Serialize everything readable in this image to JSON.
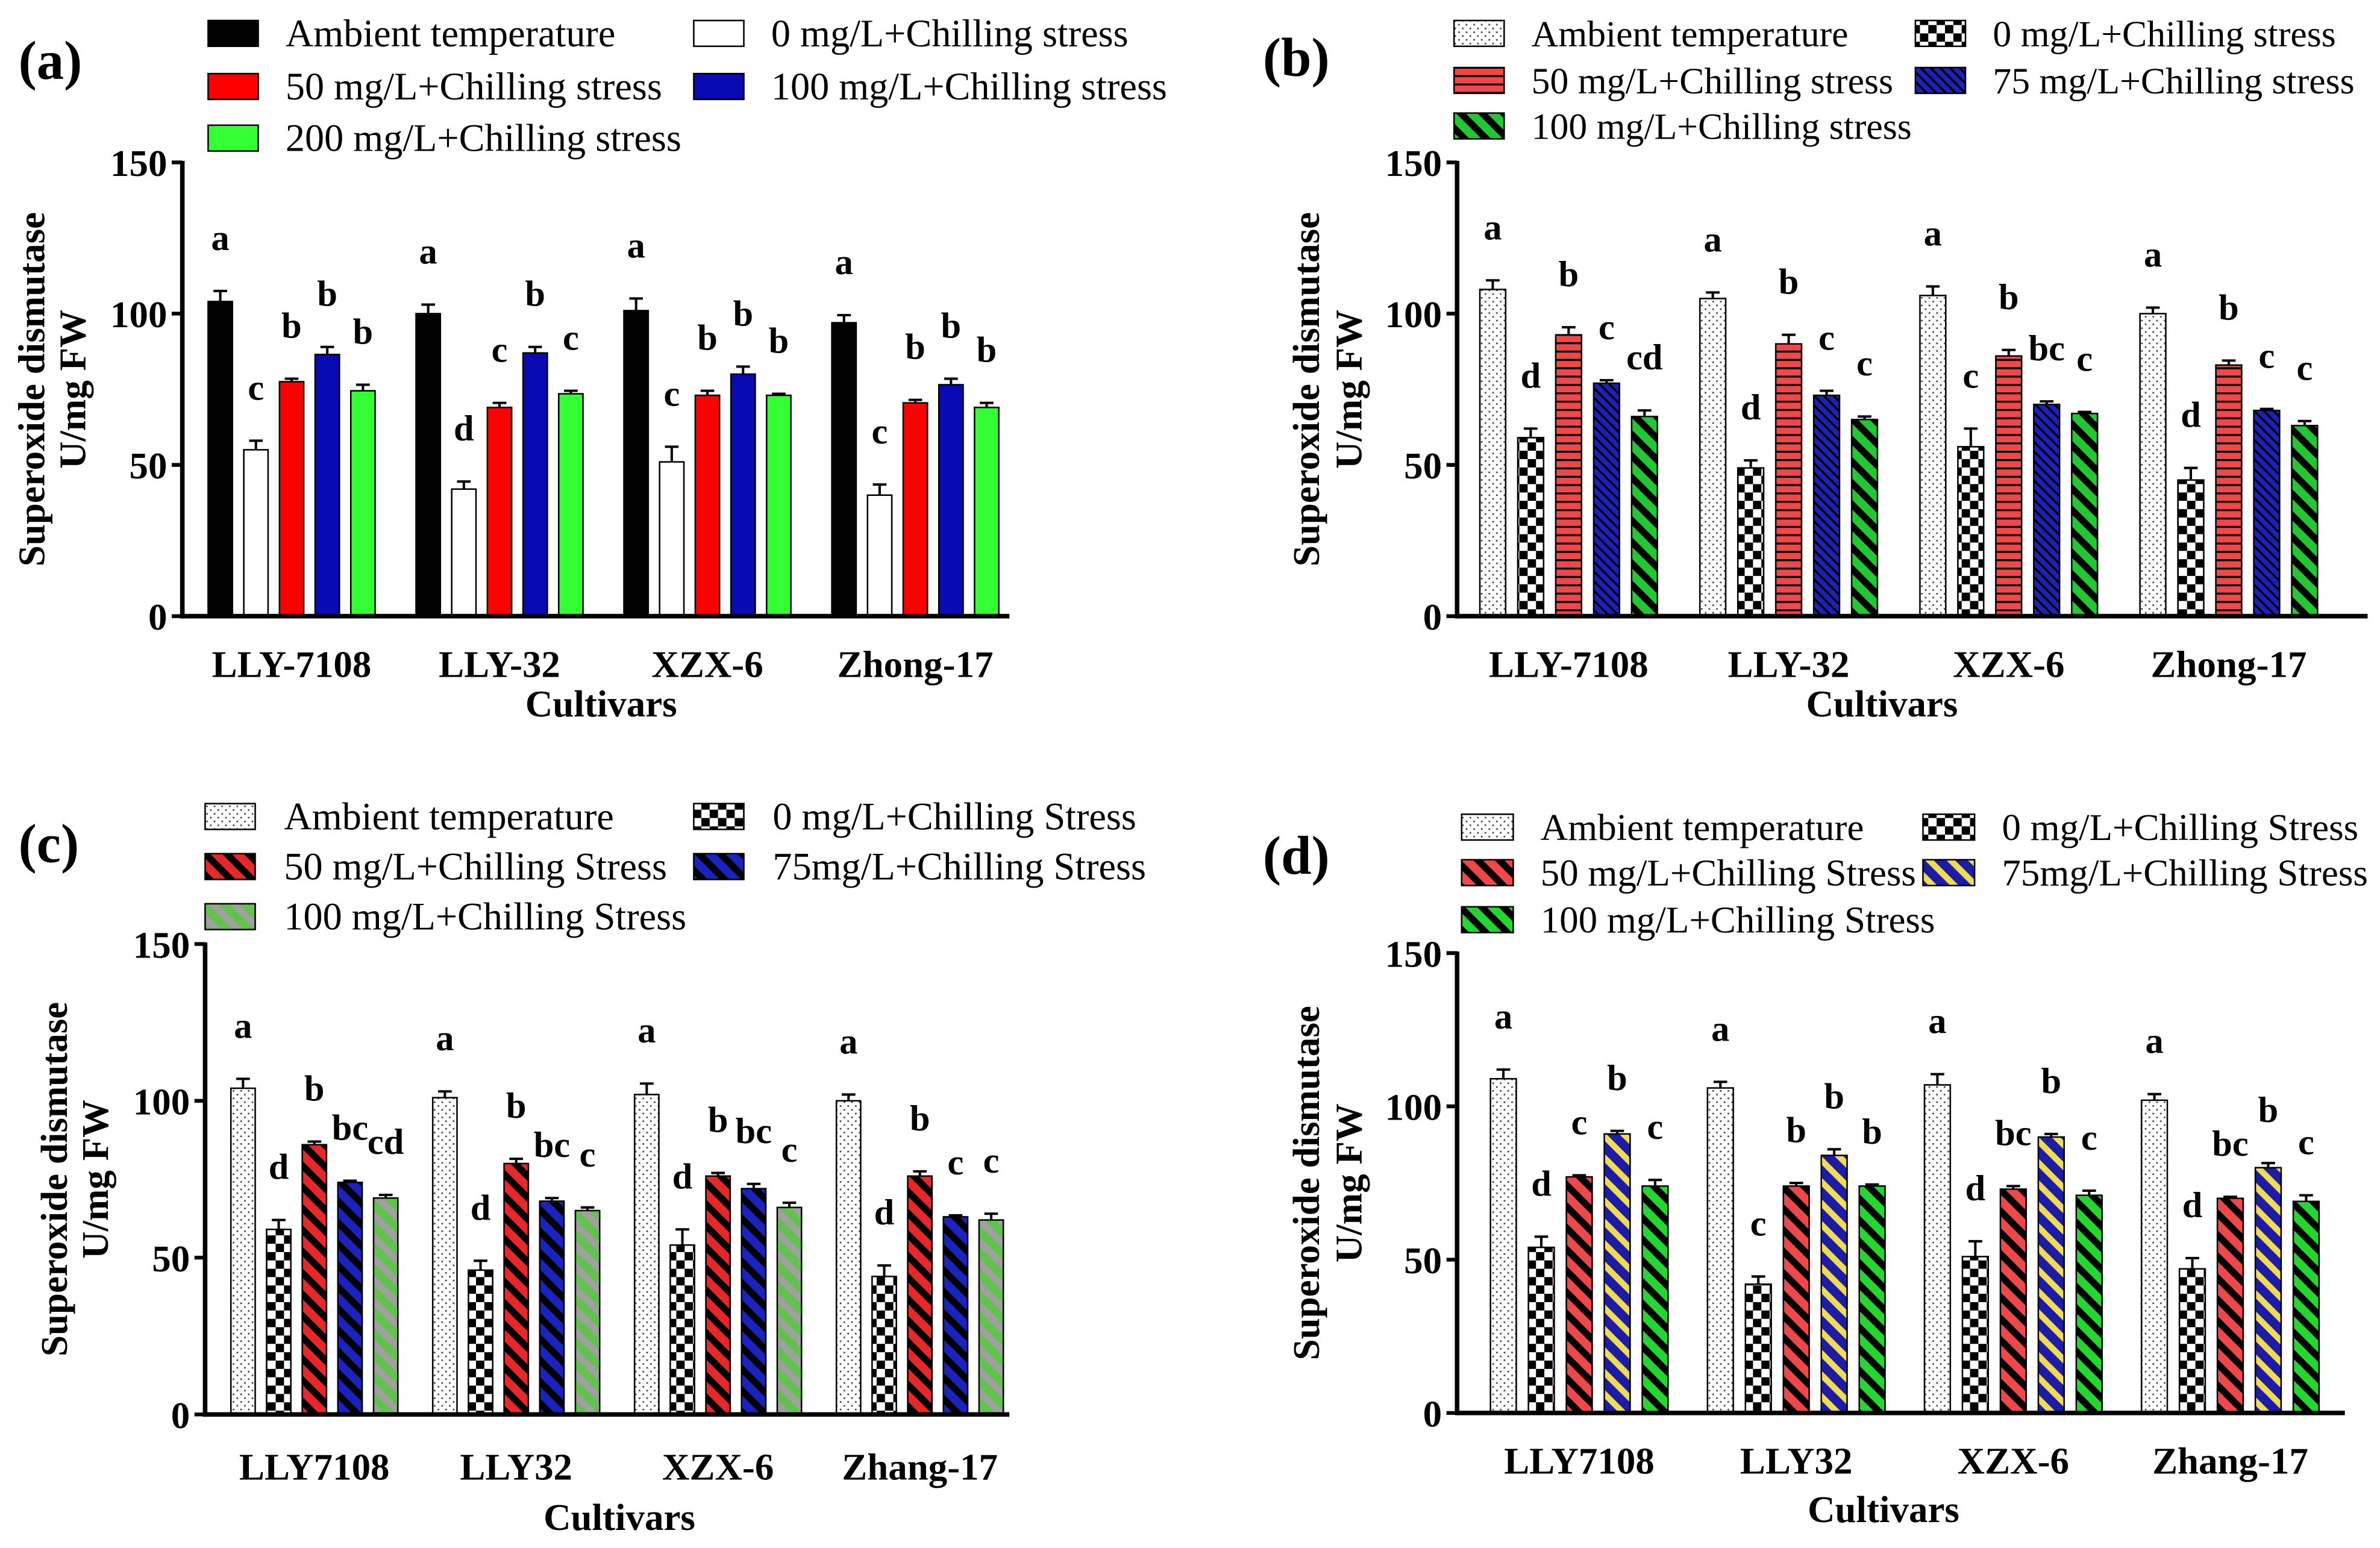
{
  "chart_data": [
    {
      "panel_label": "(a)",
      "type": "bar",
      "categories": [
        "LLY-7108",
        "LLY-32",
        "XZX-6",
        "Zhong-17"
      ],
      "xlabel": "Cultivars",
      "ylabel": "Superoxide dismutase",
      "ylabel_unit": "U/mg FW",
      "ylim": [
        0,
        150
      ],
      "yticks": [
        0,
        50,
        100,
        150
      ],
      "series": [
        {
          "name": "Ambient temperature",
          "color": "#000000",
          "stripe": "#000000",
          "values": [
            104,
            100,
            101,
            97
          ],
          "errors": [
            3.5,
            3,
            4,
            2.5
          ],
          "letters": [
            "a",
            "a",
            "a",
            "a"
          ]
        },
        {
          "name": "0 mg/L+Chilling stress",
          "color": "#FFFFFF",
          "stripe": "#000000",
          "values": [
            55,
            42,
            51,
            40
          ],
          "errors": [
            3,
            2.5,
            5,
            3.5
          ],
          "letters": [
            "c",
            "d",
            "c",
            "c"
          ]
        },
        {
          "name": "50 mg/L+Chilling stress",
          "color": "#FF0000",
          "stripe": "#000000",
          "values": [
            77.5,
            69,
            73,
            70.5
          ],
          "errors": [
            1,
            1.5,
            1.5,
            1
          ],
          "letters": [
            "b",
            "c",
            "b",
            "b"
          ]
        },
        {
          "name": "100 mg/L+Chilling stress",
          "color": "#0A0AB4",
          "stripe": "#000000",
          "values": [
            86.5,
            87,
            80,
            76.5
          ],
          "errors": [
            2.5,
            2,
            2.5,
            2
          ],
          "letters": [
            "b",
            "b",
            "b",
            "b"
          ]
        },
        {
          "name": "200 mg/L+Chilling stress",
          "color": "#33FF33",
          "stripe": "#000000",
          "values": [
            74.5,
            73.5,
            73,
            69
          ],
          "errors": [
            2,
            1,
            0.5,
            1.5
          ],
          "letters": [
            "b",
            "c",
            "b",
            "b"
          ]
        }
      ]
    },
    {
      "panel_label": "(b)",
      "type": "bar",
      "categories": [
        "LLY-7108",
        "LLY-32",
        "XZX-6",
        "Zhong-17"
      ],
      "xlabel": "Cultivars",
      "ylabel": "Superoxide dismutase",
      "ylabel_unit": "U/mg FW",
      "ylim": [
        0,
        150
      ],
      "yticks": [
        0,
        50,
        100,
        150
      ],
      "series": [
        {
          "name": "Ambient temperature",
          "color": "#FFFFFF",
          "stripe": "#444444",
          "values": [
            108,
            105,
            106,
            100
          ],
          "errors": [
            3,
            2,
            3,
            2
          ],
          "letters": [
            "a",
            "a",
            "a",
            "a"
          ]
        },
        {
          "name": "0 mg/L+Chilling stress",
          "color": "#FFFFFF",
          "stripe": "#000000",
          "values": [
            59,
            49,
            56,
            45
          ],
          "errors": [
            3,
            2.5,
            6,
            4
          ],
          "letters": [
            "d",
            "d",
            "c",
            "d"
          ]
        },
        {
          "name": "50 mg/L+Chilling stress",
          "color": "#F04848",
          "stripe": "#000000",
          "values": [
            93,
            90,
            86,
            83
          ],
          "errors": [
            2.5,
            3,
            2,
            1.5
          ],
          "letters": [
            "b",
            "b",
            "b",
            "b"
          ]
        },
        {
          "name": "75 mg/L+Chilling stress",
          "color": "#1A22B8",
          "stripe": "#000000",
          "values": [
            77,
            73,
            70,
            68
          ],
          "errors": [
            1,
            1.5,
            1,
            0.5
          ],
          "letters": [
            "c",
            "c",
            "bc",
            "c"
          ]
        },
        {
          "name": "100 mg/L+Chilling stress",
          "color": "#22C832",
          "stripe": "#000000",
          "values": [
            66,
            65,
            67,
            63
          ],
          "errors": [
            2,
            1,
            0.5,
            1.5
          ],
          "letters": [
            "cd",
            "c",
            "c",
            "c"
          ]
        }
      ]
    },
    {
      "panel_label": "(c)",
      "type": "bar",
      "categories": [
        "LLY7108",
        "LLY32",
        "XZX-6",
        "Zhang-17"
      ],
      "xlabel": "Cultivars",
      "ylabel": "Superoxide dismutase",
      "ylabel_unit": "U/mg FW",
      "ylim": [
        0,
        150
      ],
      "yticks": [
        0,
        50,
        100,
        150
      ],
      "series": [
        {
          "name": "Ambient temperature",
          "color": "#FFFFFF",
          "stripe": "#444444",
          "values": [
            104,
            101,
            102,
            100
          ],
          "errors": [
            3,
            2,
            3.5,
            2
          ],
          "letters": [
            "a",
            "a",
            "a",
            "a"
          ]
        },
        {
          "name": "0 mg/L+Chilling Stress",
          "color": "#FFFFFF",
          "stripe": "#000000",
          "values": [
            59,
            46,
            54,
            44
          ],
          "errors": [
            3,
            3,
            5,
            3.5
          ],
          "letters": [
            "d",
            "d",
            "d",
            "d"
          ]
        },
        {
          "name": "50 mg/L+Chilling Stress",
          "color": "#E82828",
          "stripe": "#000000",
          "values": [
            86,
            80,
            76,
            76
          ],
          "errors": [
            1,
            1.5,
            1,
            1.5
          ],
          "letters": [
            "b",
            "b",
            "b",
            "b"
          ]
        },
        {
          "name": "75mg/L+Chilling Stress",
          "color": "#1A22C0",
          "stripe": "#000000",
          "values": [
            74,
            68,
            72,
            63
          ],
          "errors": [
            0.5,
            1,
            1.5,
            0.5
          ],
          "letters": [
            "bc",
            "bc",
            "bc",
            "c"
          ]
        },
        {
          "name": "100 mg/L+Chilling Stress",
          "color": "#62C24E",
          "stripe": "#A0A0A0",
          "values": [
            69,
            65,
            66,
            62
          ],
          "errors": [
            1,
            1,
            1.5,
            2
          ],
          "letters": [
            "cd",
            "c",
            "c",
            "c"
          ]
        }
      ]
    },
    {
      "panel_label": "(d)",
      "type": "bar",
      "categories": [
        "LLY7108",
        "LLY32",
        "XZX-6",
        "Zhang-17"
      ],
      "xlabel": "Cultivars",
      "ylabel": "Superoxide dismutase",
      "ylabel_unit": "U/mg FW",
      "ylim": [
        0,
        150
      ],
      "yticks": [
        0,
        50,
        100,
        150
      ],
      "series": [
        {
          "name": "Ambient temperature",
          "color": "#FFFFFF",
          "stripe": "#444444",
          "values": [
            109,
            106,
            107,
            102
          ],
          "errors": [
            3,
            2,
            3.5,
            2
          ],
          "letters": [
            "a",
            "a",
            "a",
            "a"
          ]
        },
        {
          "name": "0 mg/L+Chilling Stress",
          "color": "#FFFFFF",
          "stripe": "#000000",
          "values": [
            54,
            42,
            51,
            47
          ],
          "errors": [
            3.5,
            2.5,
            5,
            3.5
          ],
          "letters": [
            "d",
            "c",
            "d",
            "d"
          ]
        },
        {
          "name": "50 mg/L+Chilling Stress",
          "color": "#F04848",
          "stripe": "#000000",
          "values": [
            77,
            74,
            73,
            70
          ],
          "errors": [
            0.5,
            1,
            1,
            0.5
          ],
          "letters": [
            "c",
            "b",
            "bc",
            "bc"
          ]
        },
        {
          "name": "75mg/L+Chilling Stress",
          "color": "#1C1CA8",
          "stripe": "#F0DC50",
          "values": [
            91,
            84,
            90,
            80
          ],
          "errors": [
            1,
            2,
            1,
            1.5
          ],
          "letters": [
            "b",
            "b",
            "b",
            "b"
          ]
        },
        {
          "name": "100 mg/L+Chilling Stress",
          "color": "#22D82E",
          "stripe": "#000000",
          "values": [
            74,
            74,
            71,
            69
          ],
          "errors": [
            2,
            0.5,
            1.5,
            2
          ],
          "letters": [
            "c",
            "b",
            "c",
            "c"
          ]
        }
      ]
    }
  ]
}
